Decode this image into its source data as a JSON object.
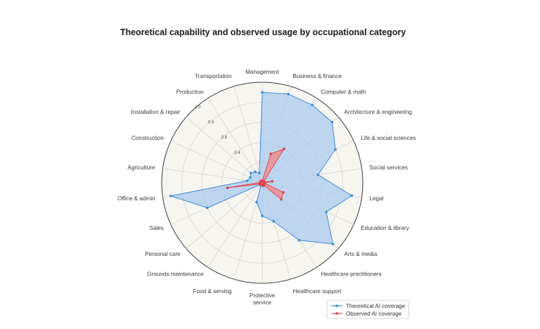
{
  "chart_data": {
    "type": "radar",
    "title": "Theoretical capability and observed usage by occupational category",
    "categories": [
      "Management",
      "Business & finance",
      "Computer & math",
      "Architecture & engineering",
      "Life & social sciences",
      "Social services",
      "Legal",
      "Education & library",
      "Arts & media",
      "Healthcare practitioners",
      "Healthcare support",
      "Protective service",
      "Food & serving",
      "Grounds maintenance",
      "Personal care",
      "Sales",
      "Office & admin",
      "Agriculture",
      "Construction",
      "Installation & repair",
      "Production",
      "Transportation"
    ],
    "series": [
      {
        "name": "Theoretical AI coverage",
        "color": "#3a8ee0",
        "fill": "#a9c9ee",
        "values": [
          0.9,
          0.92,
          0.92,
          0.92,
          0.8,
          0.56,
          0.9,
          0.7,
          0.93,
          0.68,
          0.4,
          0.33,
          0.2,
          0.02,
          0.03,
          0.6,
          0.92,
          0.15,
          0.13,
          0.15,
          0.13,
          0.1
        ]
      },
      {
        "name": "Observed AI coverage",
        "color": "#e0454e",
        "fill": "#ec8f93",
        "values": [
          0.02,
          0.3,
          0.4,
          0.02,
          0.02,
          0.1,
          0.02,
          0.23,
          0.25,
          0.03,
          0.03,
          0.02,
          0.02,
          0.02,
          0.02,
          0.03,
          0.35,
          0.02,
          0.02,
          0.02,
          0.02,
          0.02
        ]
      }
    ],
    "radial_ticks": [
      {
        "value": 0.4,
        "label": "0.4"
      },
      {
        "value": 0.6,
        "label": "0.6"
      },
      {
        "value": 0.8,
        "label": "0.8"
      },
      {
        "value": 1.0,
        "label": "1.0"
      }
    ],
    "radial_range": [
      0,
      1.0
    ],
    "grid": true,
    "grid_levels": [
      0.2,
      0.4,
      0.6,
      0.8,
      1.0
    ],
    "legend_position": "bottom-right",
    "background_color": "#f7f5f0",
    "grid_color": "#d8d5ce"
  }
}
